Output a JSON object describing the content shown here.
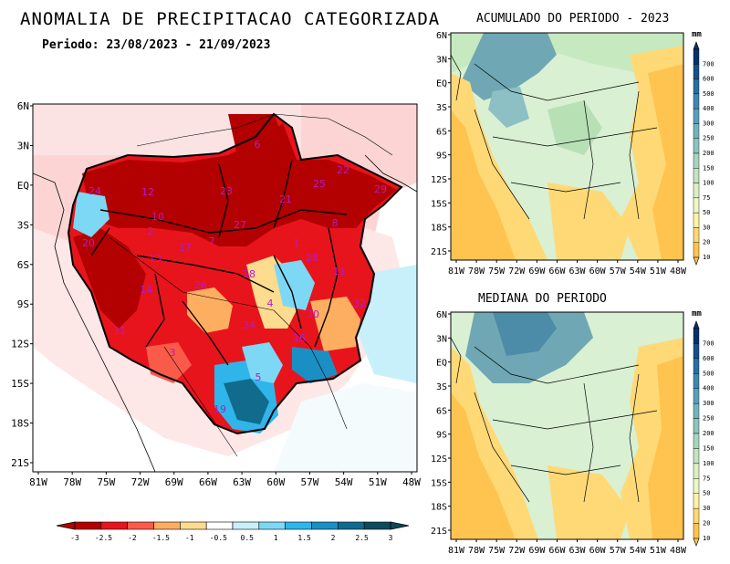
{
  "main_map": {
    "title": "ANOMALIA DE PRECIPITACAO CATEGORIZADA",
    "period": "Periodo: 23/08/2023 - 21/09/2023",
    "lat_labels": [
      "6N",
      "3N",
      "EQ",
      "3S",
      "6S",
      "9S",
      "12S",
      "15S",
      "18S",
      "21S"
    ],
    "lon_labels": [
      "81W",
      "78W",
      "75W",
      "72W",
      "69W",
      "66W",
      "63W",
      "60W",
      "57W",
      "54W",
      "51W",
      "48W"
    ],
    "basin_numbers": [
      {
        "n": "6"
      },
      {
        "n": "12"
      },
      {
        "n": "23"
      },
      {
        "n": "22"
      },
      {
        "n": "24"
      },
      {
        "n": "25"
      },
      {
        "n": "10"
      },
      {
        "n": "27"
      },
      {
        "n": "21"
      },
      {
        "n": "13"
      },
      {
        "n": "2"
      },
      {
        "n": "20"
      },
      {
        "n": "29"
      },
      {
        "n": "17"
      },
      {
        "n": "7"
      },
      {
        "n": "1"
      },
      {
        "n": "8"
      },
      {
        "n": "28"
      },
      {
        "n": "11"
      },
      {
        "n": "14"
      },
      {
        "n": "18"
      },
      {
        "n": "26"
      },
      {
        "n": "4"
      },
      {
        "n": "30"
      },
      {
        "n": "32"
      },
      {
        "n": "31"
      },
      {
        "n": "34"
      },
      {
        "n": "16"
      },
      {
        "n": "3"
      },
      {
        "n": "5"
      },
      {
        "n": "19"
      }
    ],
    "colorbar": {
      "labels": [
        "-3",
        "-2.5",
        "-2",
        "-1.5",
        "-1",
        "-0.5",
        "0.5",
        "1",
        "1.5",
        "2",
        "2.5",
        "3"
      ],
      "colors": [
        "#b30000",
        "#e8141c",
        "#fa5a4a",
        "#fdae61",
        "#fddb8f",
        "#ffffff",
        "#c8f0fa",
        "#7dd8f5",
        "#2fb5ea",
        "#1a8fc4",
        "#116b8c",
        "#0b4b5c"
      ]
    }
  },
  "top_map": {
    "title": "ACUMULADO DO PERIODO - 2023",
    "lat_labels": [
      "6N",
      "3N",
      "EQ",
      "3S",
      "6S",
      "9S",
      "12S",
      "15S",
      "18S",
      "21S"
    ],
    "lon_labels": [
      "81W",
      "78W",
      "75W",
      "72W",
      "69W",
      "66W",
      "63W",
      "60W",
      "57W",
      "54W",
      "51W",
      "48W"
    ],
    "unit": "mm",
    "colorbar_labels": [
      "700",
      "600",
      "500",
      "400",
      "300",
      "250",
      "200",
      "150",
      "100",
      "75",
      "50",
      "30",
      "20",
      "10"
    ]
  },
  "bottom_map": {
    "title": "MEDIANA DO PERIODO",
    "lat_labels": [
      "6N",
      "3N",
      "EQ",
      "3S",
      "6S",
      "9S",
      "12S",
      "15S",
      "18S",
      "21S"
    ],
    "lon_labels": [
      "81W",
      "78W",
      "75W",
      "72W",
      "69W",
      "66W",
      "63W",
      "60W",
      "57W",
      "54W",
      "51W",
      "48W"
    ],
    "unit": "mm",
    "colorbar_labels": [
      "700",
      "600",
      "500",
      "400",
      "300",
      "250",
      "200",
      "150",
      "100",
      "75",
      "50",
      "30",
      "20",
      "10"
    ]
  }
}
